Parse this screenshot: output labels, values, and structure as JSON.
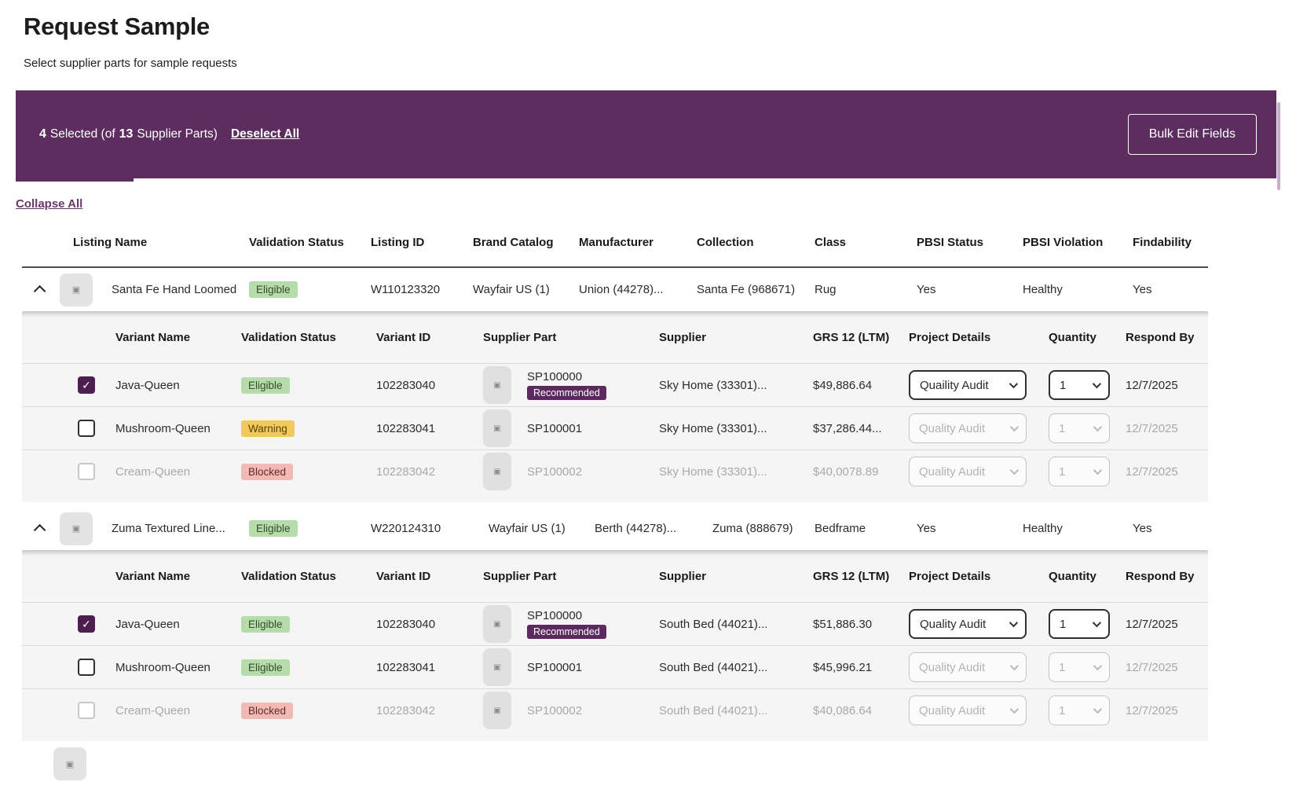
{
  "page": {
    "title": "Request Sample",
    "subtitle": "Select supplier parts for sample requests"
  },
  "banner": {
    "selected_count": "4",
    "selected_text": "Selected (of",
    "total_count": "13",
    "total_text": "Supplier Parts)",
    "deselect_label": "Deselect All",
    "bulk_edit_label": "Bulk Edit Fields"
  },
  "collapse_all_label": "Collapse All",
  "listing_columns": [
    "Listing Name",
    "Validation Status",
    "Listing ID",
    "Brand Catalog",
    "Manufacturer",
    "Collection",
    "Class",
    "PBSI Status",
    "PBSI Violation",
    "Findability"
  ],
  "variant_columns": [
    "Variant Name",
    "Validation Status",
    "Variant ID",
    "Supplier Part",
    "Supplier",
    "GRS 12 (LTM)",
    "Project Details",
    "Quantity",
    "Respond By"
  ],
  "icons": {
    "check_glyph": "✓",
    "image_glyph": "▣"
  },
  "colors": {
    "banner_purple": "#5C2D5E",
    "checkbox_purple": "#4D1F50",
    "recommended_purple": "#5C2A5E",
    "link_purple": "#68386B",
    "eligible_green_bg": "#B7DCAB",
    "warning_amber_bg": "#F3C95C",
    "blocked_red_bg": "#F3B9B4",
    "panel_gray_bg": "#F5F5F5"
  },
  "listings": [
    {
      "name": "Santa Fe Hand Loomed",
      "status": "Eligible",
      "listing_id": "W110123320",
      "brand_catalog": "Wayfair US (1)",
      "manufacturer": "Union (44278)...",
      "collection": "Santa Fe (968671)",
      "class": "Rug",
      "pbsi_status": "Yes",
      "pbsi_violation": "Healthy",
      "findability": "Yes",
      "variants": [
        {
          "name": "Java-Queen",
          "status": "Eligible",
          "variant_id": "102283040",
          "supplier_part": "SP100000",
          "recommended_label": "Recommended",
          "supplier": "Sky Home (33301)...",
          "grs": "$49,886.64",
          "project_details": "Quaility Audit",
          "quantity": "1",
          "respond_by": "12/7/2025"
        },
        {
          "name": "Mushroom-Queen",
          "status": "Warning",
          "variant_id": "102283041",
          "supplier_part": "SP100001",
          "supplier": "Sky Home (33301)...",
          "grs": "$37,286.44...",
          "project_details": "Quality Audit",
          "quantity": "1",
          "respond_by": "12/7/2025"
        },
        {
          "name": "Cream-Queen",
          "status": "Blocked",
          "variant_id": "102283042",
          "supplier_part": "SP100002",
          "supplier": "Sky Home (33301)...",
          "grs": "$40,0078.89",
          "project_details": "Quality Audit",
          "quantity": "1",
          "respond_by": "12/7/2025"
        }
      ]
    },
    {
      "name": "Zuma Textured Line...",
      "status": "Eligible",
      "listing_id": "W220124310",
      "brand_catalog": "Wayfair US (1)",
      "manufacturer": "Berth (44278)...",
      "collection": "Zuma (888679)",
      "class": "Bedframe",
      "pbsi_status": "Yes",
      "pbsi_violation": "Healthy",
      "findability": "Yes",
      "variants": [
        {
          "name": "Java-Queen",
          "status": "Eligible",
          "variant_id": "102283040",
          "supplier_part": "SP100000",
          "recommended_label": "Recommended",
          "supplier": "South Bed (44021)...",
          "grs": "$51,886.30",
          "project_details": "Quality Audit",
          "quantity": "1",
          "respond_by": "12/7/2025"
        },
        {
          "name": "Mushroom-Queen",
          "status": "Eligible",
          "variant_id": "102283041",
          "supplier_part": "SP100001",
          "supplier": "South Bed (44021)...",
          "grs": "$45,996.21",
          "project_details": "Quality Audit",
          "quantity": "1",
          "respond_by": "12/7/2025"
        },
        {
          "name": "Cream-Queen",
          "status": "Blocked",
          "variant_id": "102283042",
          "supplier_part": "SP100002",
          "supplier": "South Bed (44021)...",
          "grs": "$40,086.64",
          "project_details": "Quality Audit",
          "quantity": "1",
          "respond_by": "12/7/2025"
        }
      ]
    }
  ]
}
